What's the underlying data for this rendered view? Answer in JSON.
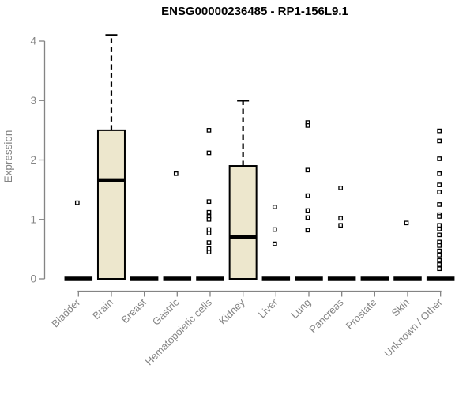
{
  "title": "ENSG00000236485 - RP1-156L9.1",
  "chart_data": {
    "type": "boxplot",
    "title": "ENSG00000236485 - RP1-156L9.1",
    "ylabel": "Expression",
    "xlabel": "",
    "ylim": [
      0,
      4
    ],
    "yticks": [
      0,
      1,
      2,
      3,
      4
    ],
    "grid": false,
    "legend": "none",
    "categories": [
      "Bladder",
      "Brain",
      "Breast",
      "Gastric",
      "Hematopoietic cells",
      "Kidney",
      "Liver",
      "Lung",
      "Pancreas",
      "Prostate",
      "Skin",
      "Unknown / Other"
    ],
    "boxes": [
      {
        "category": "Bladder",
        "q1": 0,
        "median": 0,
        "q3": 0,
        "whisker_low": 0,
        "whisker_high": 0,
        "outliers": [
          1.28
        ]
      },
      {
        "category": "Brain",
        "q1": 0,
        "median": 1.66,
        "q3": 2.5,
        "whisker_low": 0,
        "whisker_high": 4.1,
        "outliers": []
      },
      {
        "category": "Breast",
        "q1": 0,
        "median": 0,
        "q3": 0,
        "whisker_low": 0,
        "whisker_high": 0,
        "outliers": []
      },
      {
        "category": "Gastric",
        "q1": 0,
        "median": 0,
        "q3": 0,
        "whisker_low": 0,
        "whisker_high": 0,
        "outliers": [
          1.77
        ]
      },
      {
        "category": "Hematopoietic cells",
        "q1": 0,
        "median": 0,
        "q3": 0,
        "whisker_low": 0,
        "whisker_high": 0,
        "outliers": [
          2.5,
          2.12,
          1.3,
          1.12,
          1.05,
          1.0,
          0.83,
          0.77,
          0.61,
          0.51,
          0.45
        ]
      },
      {
        "category": "Kidney",
        "q1": 0,
        "median": 0.7,
        "q3": 1.9,
        "whisker_low": 0,
        "whisker_high": 3.0,
        "outliers": []
      },
      {
        "category": "Liver",
        "q1": 0,
        "median": 0,
        "q3": 0,
        "whisker_low": 0,
        "whisker_high": 0,
        "outliers": [
          1.21,
          0.83,
          0.59
        ]
      },
      {
        "category": "Lung",
        "q1": 0,
        "median": 0,
        "q3": 0,
        "whisker_low": 0,
        "whisker_high": 0,
        "outliers": [
          2.63,
          2.58,
          1.83,
          1.4,
          1.15,
          1.03,
          0.82
        ]
      },
      {
        "category": "Pancreas",
        "q1": 0,
        "median": 0,
        "q3": 0,
        "whisker_low": 0,
        "whisker_high": 0,
        "outliers": [
          1.53,
          1.02,
          0.9
        ]
      },
      {
        "category": "Prostate",
        "q1": 0,
        "median": 0,
        "q3": 0,
        "whisker_low": 0,
        "whisker_high": 0,
        "outliers": []
      },
      {
        "category": "Skin",
        "q1": 0,
        "median": 0,
        "q3": 0,
        "whisker_low": 0,
        "whisker_high": 0,
        "outliers": [
          0.94
        ]
      },
      {
        "category": "Unknown / Other",
        "q1": 0,
        "median": 0,
        "q3": 0,
        "whisker_low": 0,
        "whisker_high": 0,
        "outliers": [
          2.49,
          2.32,
          2.02,
          1.77,
          1.58,
          1.46,
          1.25,
          1.08,
          1.05,
          0.9,
          0.84,
          0.74,
          0.62,
          0.56,
          0.47,
          0.4,
          0.31,
          0.24,
          0.17
        ]
      }
    ],
    "colors": {
      "box_fill": "#EDE7CD",
      "box_border": "#000000",
      "median": "#000000",
      "outlier": "#000000",
      "axis": "#848484",
      "tick_text": "#848484",
      "title_text": "#000000",
      "background": "#FFFFFF"
    }
  }
}
